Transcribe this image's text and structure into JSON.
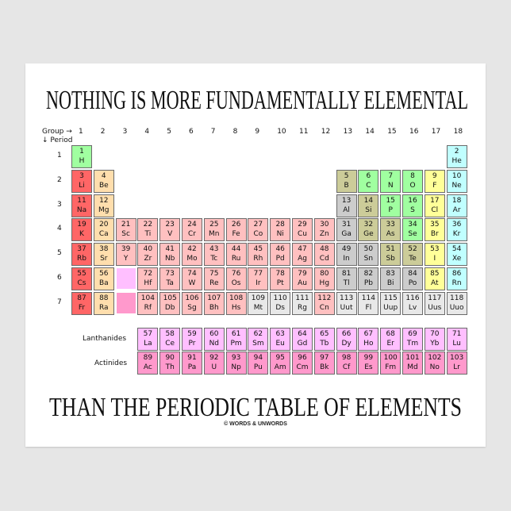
{
  "title_top": "NOTHING IS MORE FUNDAMENTALLY ELEMENTAL",
  "title_bottom": "THAN THE PERIODIC TABLE OF ELEMENTS",
  "copyright": "© WORDS & UNWORDS",
  "group_label": "Group →",
  "period_label": "↓ Period",
  "groups": [
    "1",
    "2",
    "3",
    "4",
    "5",
    "6",
    "7",
    "8",
    "9",
    "10",
    "11",
    "12",
    "13",
    "14",
    "15",
    "16",
    "17",
    "18"
  ],
  "periods": [
    "1",
    "2",
    "3",
    "4",
    "5",
    "6",
    "7"
  ],
  "lanthanides_label": "Lanthanides",
  "actinides_label": "Actinides",
  "colors": {
    "ak": "#ff6666",
    "ae": "#ffdead",
    "tm": "#ffc0c0",
    "pt": "#cccccc",
    "md": "#cccc99",
    "nm": "#a0ffa0",
    "hl": "#ffff99",
    "ng": "#c0ffff",
    "un": "#e8e8e8",
    "ln": "#ffbfff",
    "an": "#ff99cc"
  },
  "elements": [
    [
      1,
      "H",
      1,
      1,
      "nm"
    ],
    [
      2,
      "He",
      18,
      1,
      "ng"
    ],
    [
      3,
      "Li",
      1,
      2,
      "ak"
    ],
    [
      4,
      "Be",
      2,
      2,
      "ae"
    ],
    [
      5,
      "B",
      13,
      2,
      "md"
    ],
    [
      6,
      "C",
      14,
      2,
      "nm"
    ],
    [
      7,
      "N",
      15,
      2,
      "nm"
    ],
    [
      8,
      "O",
      16,
      2,
      "nm"
    ],
    [
      9,
      "F",
      17,
      2,
      "hl"
    ],
    [
      10,
      "Ne",
      18,
      2,
      "ng"
    ],
    [
      11,
      "Na",
      1,
      3,
      "ak"
    ],
    [
      12,
      "Mg",
      2,
      3,
      "ae"
    ],
    [
      13,
      "Al",
      13,
      3,
      "pt"
    ],
    [
      14,
      "Si",
      14,
      3,
      "md"
    ],
    [
      15,
      "P",
      15,
      3,
      "nm"
    ],
    [
      16,
      "S",
      16,
      3,
      "nm"
    ],
    [
      17,
      "Cl",
      17,
      3,
      "hl"
    ],
    [
      18,
      "Ar",
      18,
      3,
      "ng"
    ],
    [
      19,
      "K",
      1,
      4,
      "ak"
    ],
    [
      20,
      "Ca",
      2,
      4,
      "ae"
    ],
    [
      21,
      "Sc",
      3,
      4,
      "tm"
    ],
    [
      22,
      "Ti",
      4,
      4,
      "tm"
    ],
    [
      23,
      "V",
      5,
      4,
      "tm"
    ],
    [
      24,
      "Cr",
      6,
      4,
      "tm"
    ],
    [
      25,
      "Mn",
      7,
      4,
      "tm"
    ],
    [
      26,
      "Fe",
      8,
      4,
      "tm"
    ],
    [
      27,
      "Co",
      9,
      4,
      "tm"
    ],
    [
      28,
      "Ni",
      10,
      4,
      "tm"
    ],
    [
      29,
      "Cu",
      11,
      4,
      "tm"
    ],
    [
      30,
      "Zn",
      12,
      4,
      "tm"
    ],
    [
      31,
      "Ga",
      13,
      4,
      "pt"
    ],
    [
      32,
      "Ge",
      14,
      4,
      "md"
    ],
    [
      33,
      "As",
      15,
      4,
      "md"
    ],
    [
      34,
      "Se",
      16,
      4,
      "nm"
    ],
    [
      35,
      "Br",
      17,
      4,
      "hl"
    ],
    [
      36,
      "Kr",
      18,
      4,
      "ng"
    ],
    [
      37,
      "Rb",
      1,
      5,
      "ak"
    ],
    [
      38,
      "Sr",
      2,
      5,
      "ae"
    ],
    [
      39,
      "Y",
      3,
      5,
      "tm"
    ],
    [
      40,
      "Zr",
      4,
      5,
      "tm"
    ],
    [
      41,
      "Nb",
      5,
      5,
      "tm"
    ],
    [
      42,
      "Mo",
      6,
      5,
      "tm"
    ],
    [
      43,
      "Tc",
      7,
      5,
      "tm"
    ],
    [
      44,
      "Ru",
      8,
      5,
      "tm"
    ],
    [
      45,
      "Rh",
      9,
      5,
      "tm"
    ],
    [
      46,
      "Pd",
      10,
      5,
      "tm"
    ],
    [
      47,
      "Ag",
      11,
      5,
      "tm"
    ],
    [
      48,
      "Cd",
      12,
      5,
      "tm"
    ],
    [
      49,
      "In",
      13,
      5,
      "pt"
    ],
    [
      50,
      "Sn",
      14,
      5,
      "pt"
    ],
    [
      51,
      "Sb",
      15,
      5,
      "md"
    ],
    [
      52,
      "Te",
      16,
      5,
      "md"
    ],
    [
      53,
      "I",
      17,
      5,
      "hl"
    ],
    [
      54,
      "Xe",
      18,
      5,
      "ng"
    ],
    [
      55,
      "Cs",
      1,
      6,
      "ak"
    ],
    [
      56,
      "Ba",
      2,
      6,
      "ae"
    ],
    [
      72,
      "Hf",
      4,
      6,
      "tm"
    ],
    [
      73,
      "Ta",
      5,
      6,
      "tm"
    ],
    [
      74,
      "W",
      6,
      6,
      "tm"
    ],
    [
      75,
      "Re",
      7,
      6,
      "tm"
    ],
    [
      76,
      "Os",
      8,
      6,
      "tm"
    ],
    [
      77,
      "Ir",
      9,
      6,
      "tm"
    ],
    [
      78,
      "Pt",
      10,
      6,
      "tm"
    ],
    [
      79,
      "Au",
      11,
      6,
      "tm"
    ],
    [
      80,
      "Hg",
      12,
      6,
      "tm"
    ],
    [
      81,
      "Tl",
      13,
      6,
      "pt"
    ],
    [
      82,
      "Pb",
      14,
      6,
      "pt"
    ],
    [
      83,
      "Bi",
      15,
      6,
      "pt"
    ],
    [
      84,
      "Po",
      16,
      6,
      "pt"
    ],
    [
      85,
      "At",
      17,
      6,
      "hl"
    ],
    [
      86,
      "Rn",
      18,
      6,
      "ng"
    ],
    [
      87,
      "Fr",
      1,
      7,
      "ak"
    ],
    [
      88,
      "Ra",
      2,
      7,
      "ae"
    ],
    [
      104,
      "Rf",
      4,
      7,
      "tm"
    ],
    [
      105,
      "Db",
      5,
      7,
      "tm"
    ],
    [
      106,
      "Sg",
      6,
      7,
      "tm"
    ],
    [
      107,
      "Bh",
      7,
      7,
      "tm"
    ],
    [
      108,
      "Hs",
      8,
      7,
      "tm"
    ],
    [
      109,
      "Mt",
      9,
      7,
      "un"
    ],
    [
      110,
      "Ds",
      10,
      7,
      "un"
    ],
    [
      111,
      "Rg",
      11,
      7,
      "un"
    ],
    [
      112,
      "Cn",
      12,
      7,
      "tm"
    ],
    [
      113,
      "Uut",
      13,
      7,
      "un"
    ],
    [
      114,
      "Fl",
      14,
      7,
      "un"
    ],
    [
      115,
      "Uup",
      15,
      7,
      "un"
    ],
    [
      116,
      "Lv",
      16,
      7,
      "un"
    ],
    [
      117,
      "Uus",
      17,
      7,
      "un"
    ],
    [
      118,
      "Uuo",
      18,
      7,
      "un"
    ]
  ],
  "lanthanides": [
    [
      57,
      "La"
    ],
    [
      58,
      "Ce"
    ],
    [
      59,
      "Pr"
    ],
    [
      60,
      "Nd"
    ],
    [
      61,
      "Pm"
    ],
    [
      62,
      "Sm"
    ],
    [
      63,
      "Eu"
    ],
    [
      64,
      "Gd"
    ],
    [
      65,
      "Tb"
    ],
    [
      66,
      "Dy"
    ],
    [
      67,
      "Ho"
    ],
    [
      68,
      "Er"
    ],
    [
      69,
      "Tm"
    ],
    [
      70,
      "Yb"
    ],
    [
      71,
      "Lu"
    ]
  ],
  "actinides": [
    [
      89,
      "Ac"
    ],
    [
      90,
      "Th"
    ],
    [
      91,
      "Pa"
    ],
    [
      92,
      "U"
    ],
    [
      93,
      "Np"
    ],
    [
      94,
      "Pu"
    ],
    [
      95,
      "Am"
    ],
    [
      96,
      "Cm"
    ],
    [
      97,
      "Bk"
    ],
    [
      98,
      "Cf"
    ],
    [
      99,
      "Es"
    ],
    [
      100,
      "Fm"
    ],
    [
      101,
      "Md"
    ],
    [
      102,
      "No"
    ],
    [
      103,
      "Lr"
    ]
  ]
}
